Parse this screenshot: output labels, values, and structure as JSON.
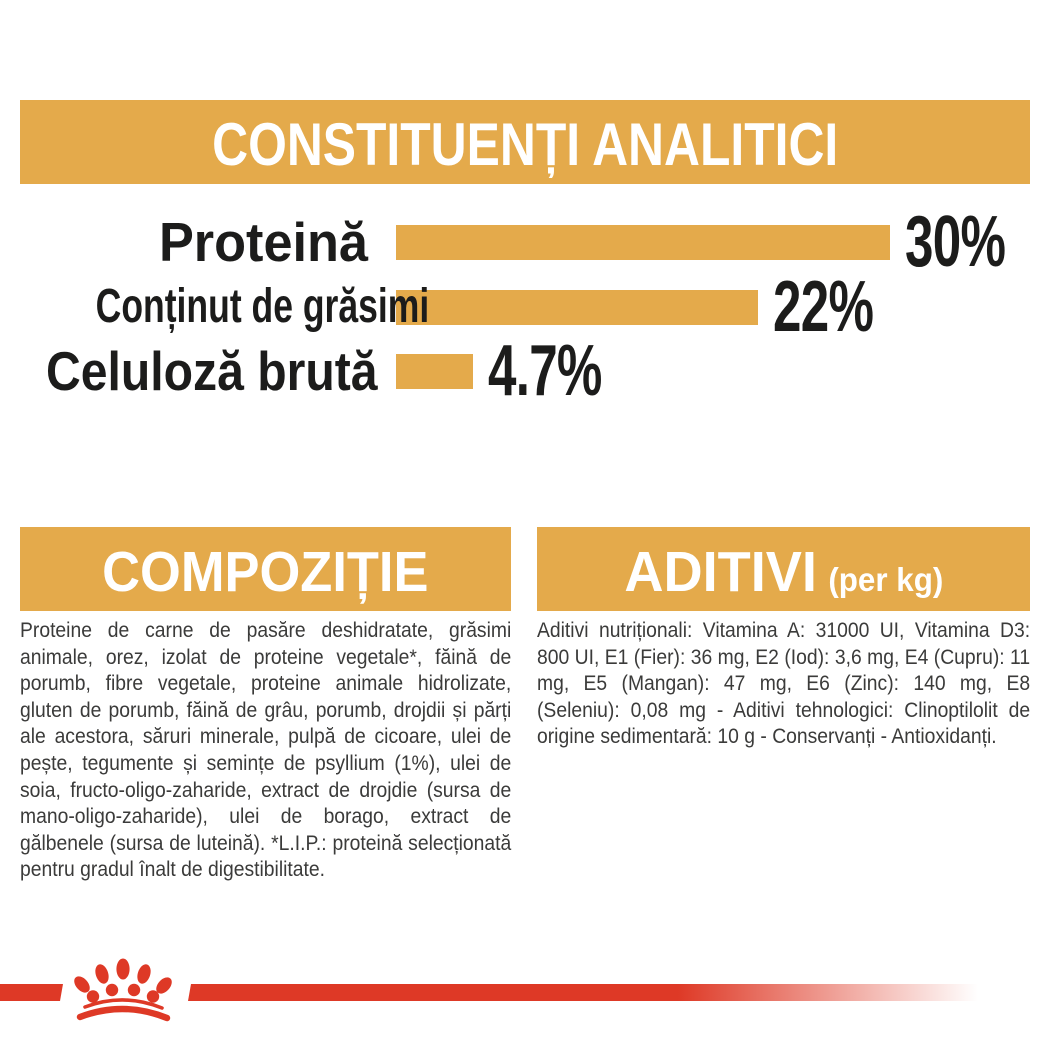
{
  "colors": {
    "gold": "#E4AA4B",
    "red": "#DE3926",
    "body_text": "#3B3B3A",
    "chart_label": "#1C1C1B",
    "banner_text": "#FFFFFF"
  },
  "header": {
    "title": "CONSTITUENȚI ANALITICI"
  },
  "chart_data": {
    "type": "bar",
    "orientation": "horizontal",
    "title": "CONSTITUENȚI ANALITICI",
    "categories": [
      "Proteină",
      "Conținut de grăsimi",
      "Celuloză brută"
    ],
    "values": [
      30,
      22,
      4.7
    ],
    "value_labels": [
      "30%",
      "22%",
      "4.7%"
    ],
    "xlim": [
      0,
      30
    ],
    "bar_color": "#E4AA4B",
    "grid": false,
    "legend": "none",
    "value_label_position": "right-of-bar"
  },
  "sections": {
    "composition": {
      "title": "COMPOZIȚIE",
      "body": "Proteine de carne de pasăre deshidratate, grăsimi animale, orez, izolat de proteine vegetale*, făină de porumb, fibre vegetale, proteine animale hidrolizate, gluten de porumb, făină de grâu, porumb, drojdii și părți ale acestora, săruri minerale, pulpă de cicoare, ulei de pește, tegumente și semințe de psyllium (1%), ulei de soia, fructo-oligo-zaharide, extract de drojdie (sursa de mano-oligo-zaharide), ulei de borago, extract de gălbenele (sursa de luteină). *L.I.P.: proteină selecționată pentru gradul înalt de digestibilitate."
    },
    "additives": {
      "title": "ADITIVI",
      "unit_note": "(per kg)",
      "body": "Aditivi nutriționali: Vitamina A: 31000 UI, Vitamina D3: 800 UI, E1 (Fier): 36 mg, E2 (Iod): 3,6 mg, E4 (Cupru): 11 mg, E5 (Mangan): 47 mg, E6 (Zinc): 140 mg, E8 (Seleniu): 0,08 mg - Aditivi tehnologici: Clinoptilolit de origine sedimentară: 10 g - Conservanți - Antioxidanți."
    }
  },
  "footer": {
    "brand_mark": "royal-canin-crown-logo"
  }
}
